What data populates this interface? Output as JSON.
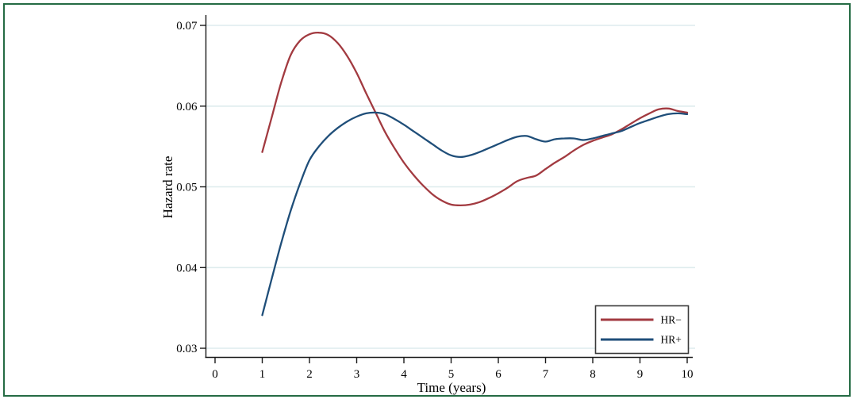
{
  "figure": {
    "border_color": "#256b44",
    "background_color": "#ffffff",
    "title": ""
  },
  "chart_data": {
    "type": "line",
    "title": "",
    "xlabel": "Time (years)",
    "ylabel": "Hazard rate",
    "xlim": [
      0,
      10
    ],
    "ylim": [
      0.03,
      0.07
    ],
    "xticks": [
      0,
      1,
      2,
      3,
      4,
      5,
      6,
      7,
      8,
      9,
      10
    ],
    "xtick_labels": [
      "0",
      "1",
      "2",
      "3",
      "4",
      "5",
      "6",
      "7",
      "8",
      "9",
      "10"
    ],
    "yticks": [
      0.03,
      0.04,
      0.05,
      0.06,
      0.07
    ],
    "ytick_labels": [
      "0.03",
      "0.04",
      "0.05",
      "0.06",
      "0.07"
    ],
    "grid": "horizontal-only",
    "gridline_color": "#deeced",
    "axis_color": "#1a1a1a",
    "legend": {
      "position": "inside-bottom-right",
      "border_color": "#3a3a3a",
      "background": "#ffffff"
    },
    "x": [
      1.0,
      1.2,
      1.4,
      1.6,
      1.8,
      2.0,
      2.2,
      2.4,
      2.6,
      2.8,
      3.0,
      3.2,
      3.4,
      3.6,
      3.8,
      4.0,
      4.2,
      4.4,
      4.6,
      4.8,
      5.0,
      5.2,
      5.4,
      5.6,
      5.8,
      6.0,
      6.2,
      6.4,
      6.6,
      6.8,
      7.0,
      7.2,
      7.4,
      7.6,
      7.8,
      8.0,
      8.2,
      8.4,
      8.6,
      8.8,
      9.0,
      9.2,
      9.4,
      9.6,
      9.8,
      10.0
    ],
    "series": [
      {
        "name": "HR−",
        "color": "#a23a40",
        "values": [
          0.0543,
          0.0586,
          0.0629,
          0.0663,
          0.0681,
          0.0689,
          0.0691,
          0.0688,
          0.0678,
          0.0662,
          0.0641,
          0.0616,
          0.0592,
          0.0568,
          0.0548,
          0.053,
          0.0515,
          0.0502,
          0.0491,
          0.0483,
          0.0478,
          0.0477,
          0.0478,
          0.0481,
          0.0486,
          0.0492,
          0.0499,
          0.0507,
          0.0511,
          0.0514,
          0.0522,
          0.053,
          0.0537,
          0.0545,
          0.0552,
          0.0557,
          0.0561,
          0.0565,
          0.0571,
          0.0578,
          0.0585,
          0.0591,
          0.0596,
          0.0597,
          0.0594,
          0.0592
        ]
      },
      {
        "name": "HR+",
        "color": "#1f4e79",
        "values": [
          0.0341,
          0.0386,
          0.043,
          0.047,
          0.0504,
          0.0533,
          0.055,
          0.0563,
          0.0573,
          0.0581,
          0.0587,
          0.0591,
          0.0592,
          0.059,
          0.0584,
          0.0577,
          0.0569,
          0.0561,
          0.0553,
          0.0545,
          0.0539,
          0.0537,
          0.0539,
          0.0543,
          0.0548,
          0.0553,
          0.0558,
          0.0562,
          0.0563,
          0.0559,
          0.0556,
          0.0559,
          0.056,
          0.056,
          0.0558,
          0.056,
          0.0563,
          0.0566,
          0.0569,
          0.0574,
          0.0579,
          0.0583,
          0.0587,
          0.059,
          0.0591,
          0.059
        ]
      }
    ]
  }
}
